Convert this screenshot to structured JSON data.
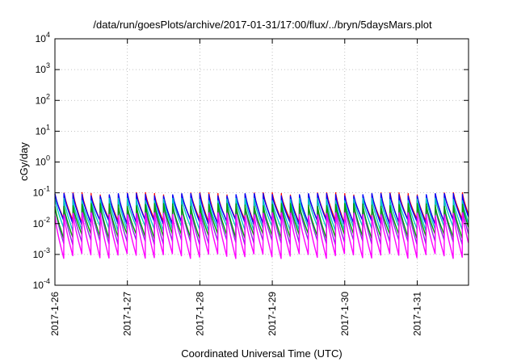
{
  "chart_data": {
    "type": "line",
    "title": "/data/run/goesPlots/archive/2017-01-31/17:00/flux/../bryn/5daysMars.plot",
    "xlabel": "Coordinated Universal Time (UTC)",
    "ylabel": "cGy/day",
    "y_scale": "log",
    "ylim": [
      0.0001,
      10000
    ],
    "xlim": [
      "2017-01-26T00:00",
      "2017-01-31T17:00"
    ],
    "x_ticks": [
      "2017-1-26",
      "2017-1-27",
      "2017-1-28",
      "2017-1-29",
      "2017-1-30",
      "2017-1-31"
    ],
    "y_ticks": [
      {
        "value": 0.0001,
        "base": "10",
        "exp": "-4"
      },
      {
        "value": 0.001,
        "base": "10",
        "exp": "-3"
      },
      {
        "value": 0.01,
        "base": "10",
        "exp": "-2"
      },
      {
        "value": 0.1,
        "base": "10",
        "exp": "-1"
      },
      {
        "value": 1,
        "base": "10",
        "exp": "0"
      },
      {
        "value": 10,
        "base": "10",
        "exp": "1"
      },
      {
        "value": 100,
        "base": "10",
        "exp": "2"
      },
      {
        "value": 1000,
        "base": "10",
        "exp": "3"
      },
      {
        "value": 10000,
        "base": "10",
        "exp": "4"
      }
    ],
    "grid": true,
    "cycles_per_day": 8,
    "series": [
      {
        "color": "#ff0000",
        "peak": 0.09,
        "trough": 0.012
      },
      {
        "color": "#0000ff",
        "peak": 0.085,
        "trough": 0.011
      },
      {
        "color": "#00c8c8",
        "peak": 0.06,
        "trough": 0.007
      },
      {
        "color": "#8a2be2",
        "peak": 0.035,
        "trough": 0.0025
      },
      {
        "color": "#00a000",
        "peak": 0.04,
        "trough": 0.004
      },
      {
        "color": "#ff00ff",
        "peak": 0.02,
        "trough": 0.0009
      }
    ]
  }
}
